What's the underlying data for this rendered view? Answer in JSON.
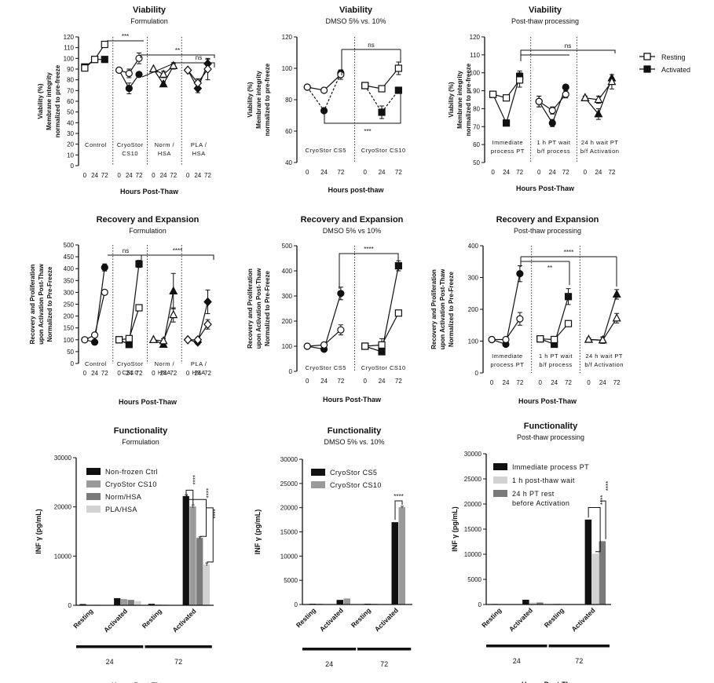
{
  "legend_shared": {
    "resting": "Resting",
    "activated": "Activated"
  },
  "chart_data": [
    {
      "id": "via-form",
      "type": "line",
      "title": "Viability",
      "subtitle": "Formulation",
      "xlabel": "Hours Post-Thaw",
      "ylabel": [
        "Viability (%)",
        "Membrane integrity",
        "normalized to pre-freeze"
      ],
      "ylim": [
        0,
        120
      ],
      "yticks": [
        0,
        10,
        20,
        30,
        40,
        50,
        60,
        70,
        80,
        90,
        100,
        110,
        120
      ],
      "x_ticks": [
        "0",
        "24",
        "72"
      ],
      "groups": [
        {
          "label": [
            "Control"
          ],
          "marker": "square",
          "resting": [
            91,
            99,
            113
          ],
          "activated": [
            92,
            99,
            99
          ],
          "err_r": [
            0,
            0,
            0
          ],
          "err_a": [
            0,
            0,
            0
          ]
        },
        {
          "label": [
            "CryoStor",
            "CS10"
          ],
          "marker": "circle",
          "resting": [
            89,
            86,
            100
          ],
          "activated": [
            89,
            72,
            85
          ],
          "err_r": [
            0,
            4,
            5
          ],
          "err_a": [
            0,
            5,
            0
          ]
        },
        {
          "label": [
            "Norm /",
            "HSA"
          ],
          "marker": "triangle",
          "resting": [
            90,
            85,
            93
          ],
          "activated": [
            90,
            76,
            93
          ],
          "err_r": [
            0,
            3,
            2
          ],
          "err_a": [
            0,
            2,
            3
          ]
        },
        {
          "label": [
            "PLA /",
            "HSA"
          ],
          "marker": "diamond",
          "resting": [
            89,
            77,
            90
          ],
          "activated": [
            89,
            72,
            95
          ],
          "err_r": [
            0,
            4,
            10
          ],
          "err_a": [
            0,
            4,
            4
          ]
        }
      ],
      "annotations": [
        "***",
        "**",
        "ns"
      ]
    },
    {
      "id": "via-dmso",
      "type": "line",
      "title": "Viability",
      "subtitle": "DMSO 5% vs. 10%",
      "xlabel": "Hours post-thaw",
      "ylabel": [
        "Viability (%)",
        "Membrane integrity",
        "normalized to pre-freeze"
      ],
      "ylim": [
        40,
        120
      ],
      "yticks": [
        40,
        60,
        80,
        100,
        120
      ],
      "x_ticks": [
        "0",
        "24",
        "72"
      ],
      "groups": [
        {
          "label": [
            "CryoStor CS5"
          ],
          "marker": "circle",
          "resting": [
            88,
            86,
            96
          ],
          "activated": [
            88,
            73,
            97
          ],
          "err_r": [
            0,
            0,
            3
          ],
          "err_a": [
            0,
            0,
            2
          ]
        },
        {
          "label": [
            "CryoStor CS10"
          ],
          "marker": "square",
          "resting": [
            89,
            87,
            100
          ],
          "activated": [
            89,
            72,
            86
          ],
          "err_r": [
            0,
            2,
            4
          ],
          "err_a": [
            0,
            4,
            0
          ]
        }
      ],
      "annotations": [
        "ns",
        "***"
      ]
    },
    {
      "id": "via-pt",
      "type": "line",
      "title": "Viability",
      "subtitle": "Post-thaw processing",
      "xlabel": "Hours Post-Thaw",
      "ylabel": [
        "Viability (%)",
        "Membrane integrity",
        "normalized to pre-freeze"
      ],
      "ylim": [
        50,
        120
      ],
      "yticks": [
        50,
        60,
        70,
        80,
        90,
        100,
        110,
        120
      ],
      "x_ticks": [
        "0",
        "24",
        "72"
      ],
      "groups": [
        {
          "label": [
            "Immediate",
            "process PT"
          ],
          "marker": "square",
          "resting": [
            88,
            86,
            96
          ],
          "activated": [
            88,
            72,
            98
          ],
          "err_r": [
            1,
            0,
            4
          ],
          "err_a": [
            1,
            0,
            3
          ]
        },
        {
          "label": [
            "1 h PT wait",
            "b/f process"
          ],
          "marker": "circle",
          "resting": [
            84,
            79,
            88
          ],
          "activated": [
            84,
            72,
            92
          ],
          "err_r": [
            3,
            2,
            2
          ],
          "err_a": [
            3,
            2,
            0
          ]
        },
        {
          "label": [
            "24 h wait PT",
            "b/f Activation"
          ],
          "marker": "triangle",
          "resting": [
            86,
            85,
            95
          ],
          "activated": [
            86,
            77,
            97
          ],
          "err_r": [
            1,
            2,
            4
          ],
          "err_a": [
            1,
            3,
            2
          ]
        }
      ],
      "annotations": [
        "ns"
      ]
    },
    {
      "id": "rec-form",
      "type": "line",
      "title": "Recovery and Expansion",
      "subtitle": "Formulation",
      "xlabel": "Hours Post-Thaw",
      "ylabel": [
        "Recovery and Proliferation",
        "upon Activation Post-Thaw",
        "Normalized to Pre-Freeze"
      ],
      "ylim": [
        0,
        500
      ],
      "yticks": [
        0,
        50,
        100,
        150,
        200,
        250,
        300,
        350,
        400,
        450,
        500
      ],
      "x_ticks": [
        "0",
        "24",
        "72"
      ],
      "groups": [
        {
          "label": [
            "Control"
          ],
          "marker": "circle",
          "resting": [
            100,
            120,
            300
          ],
          "activated": [
            100,
            90,
            405
          ],
          "err_r": [
            0,
            5,
            0
          ],
          "err_a": [
            0,
            0,
            15
          ]
        },
        {
          "label": [
            "CryoStor",
            "CS10"
          ],
          "marker": "square",
          "resting": [
            100,
            105,
            235
          ],
          "activated": [
            100,
            80,
            420
          ],
          "err_r": [
            0,
            0,
            0
          ],
          "err_a": [
            0,
            0,
            15
          ]
        },
        {
          "label": [
            "Norm /",
            "HSA"
          ],
          "marker": "triangle",
          "resting": [
            100,
            95,
            205
          ],
          "activated": [
            100,
            80,
            305
          ],
          "err_r": [
            0,
            10,
            30
          ],
          "err_a": [
            0,
            10,
            75
          ]
        },
        {
          "label": [
            "PLA /",
            "HSA"
          ],
          "marker": "diamond",
          "resting": [
            100,
            100,
            165
          ],
          "activated": [
            100,
            90,
            260
          ],
          "err_r": [
            0,
            10,
            20
          ],
          "err_a": [
            0,
            10,
            50
          ]
        }
      ],
      "annotations": [
        "ns",
        "****"
      ]
    },
    {
      "id": "rec-dmso",
      "type": "line",
      "title": "Recovery and Expansion",
      "subtitle": "DMSO 5% vs 10%",
      "xlabel": "Hours Post-Thaw",
      "ylabel": [
        "Recovery and Proliferation",
        "upon Activation Post-Thaw",
        "Normalized to Pre-Freeze"
      ],
      "ylim": [
        0,
        500
      ],
      "yticks": [
        0,
        100,
        200,
        300,
        400,
        500
      ],
      "x_ticks": [
        "0",
        "24",
        "72"
      ],
      "groups": [
        {
          "label": [
            "CryoStor CS5"
          ],
          "marker": "circle",
          "resting": [
            100,
            105,
            165
          ],
          "activated": [
            100,
            88,
            310
          ],
          "err_r": [
            0,
            0,
            20
          ],
          "err_a": [
            0,
            5,
            25
          ]
        },
        {
          "label": [
            "CryoStor CS10"
          ],
          "marker": "square",
          "resting": [
            100,
            105,
            232
          ],
          "activated": [
            100,
            78,
            420
          ],
          "err_r": [
            0,
            25,
            0
          ],
          "err_a": [
            0,
            0,
            20
          ]
        }
      ],
      "annotations": [
        "****"
      ]
    },
    {
      "id": "rec-pt",
      "type": "line",
      "title": "Recovery and Expansion",
      "subtitle": "Post-thaw processing",
      "xlabel": "Hours Post-Thaw",
      "ylabel": [
        "Recovery and Proliferation",
        "upon Activation Post-Thaw",
        "Normalized to Pre-Freeze"
      ],
      "ylim": [
        0,
        400
      ],
      "yticks": [
        0,
        100,
        200,
        300,
        400
      ],
      "x_ticks": [
        "0",
        "24",
        "72"
      ],
      "groups": [
        {
          "label": [
            "Immediate",
            "process PT"
          ],
          "marker": "circle",
          "resting": [
            105,
            105,
            170
          ],
          "activated": [
            105,
            90,
            312
          ],
          "err_r": [
            0,
            5,
            20
          ],
          "err_a": [
            0,
            5,
            25
          ]
        },
        {
          "label": [
            "1 h PT wait",
            "b/f process"
          ],
          "marker": "square",
          "resting": [
            107,
            105,
            155
          ],
          "activated": [
            107,
            90,
            240
          ],
          "err_r": [
            0,
            5,
            0
          ],
          "err_a": [
            0,
            0,
            25
          ]
        },
        {
          "label": [
            "24 h wait PT",
            "b/f Activation"
          ],
          "marker": "triangle",
          "resting": [
            105,
            103,
            172
          ],
          "activated": [
            105,
            103,
            247
          ],
          "err_r": [
            5,
            10,
            15
          ],
          "err_a": [
            5,
            10,
            15
          ]
        }
      ],
      "annotations": [
        "**",
        "****"
      ]
    },
    {
      "id": "fun-form",
      "type": "bar",
      "title": "Functionality",
      "subtitle": "Formulation",
      "xlabel": "Hours Post-Thaw",
      "ylabel": "INF γ (pg/mL)",
      "ylim": [
        0,
        30000
      ],
      "yticks": [
        0,
        10000,
        20000,
        30000
      ],
      "categories": [
        "Resting",
        "Activated",
        "Resting",
        "Activated"
      ],
      "timepoints": [
        "24",
        "72"
      ],
      "series": [
        {
          "name": "Non-frozen Ctrl",
          "color": "#111111",
          "values": [
            250,
            1450,
            300,
            22200
          ],
          "err": [
            0,
            0,
            0,
            300
          ]
        },
        {
          "name": "CryoStor CS10",
          "color": "#9a9a9a",
          "values": [
            100,
            1250,
            150,
            20100
          ],
          "err": [
            0,
            0,
            0,
            300
          ]
        },
        {
          "name": "Norm/HSA",
          "color": "#7a7a7a",
          "values": [
            100,
            1100,
            100,
            13700
          ],
          "err": [
            0,
            0,
            0,
            200
          ]
        },
        {
          "name": "PLA/HSA",
          "color": "#d2d2d2",
          "values": [
            80,
            850,
            80,
            8300
          ],
          "err": [
            0,
            0,
            0,
            300
          ]
        }
      ],
      "annotations": [
        "****",
        "****",
        "****"
      ]
    },
    {
      "id": "fun-dmso",
      "type": "bar",
      "title": "Functionality",
      "subtitle": "DMSO 5% vs. 10%",
      "xlabel": "Hours Post-Thaw",
      "ylabel": "INF γ (pg/mL)",
      "ylim": [
        0,
        30000
      ],
      "yticks": [
        0,
        5000,
        10000,
        15000,
        20000,
        25000,
        30000
      ],
      "categories": [
        "Resting",
        "Activated",
        "Resting",
        "Activated"
      ],
      "timepoints": [
        "24",
        "72"
      ],
      "series": [
        {
          "name": "CryoStor CS5",
          "color": "#111111",
          "values": [
            150,
            950,
            150,
            17000
          ],
          "err": [
            0,
            0,
            0,
            0
          ]
        },
        {
          "name": "CryoStor CS10",
          "color": "#9a9a9a",
          "values": [
            150,
            1250,
            150,
            20100
          ],
          "err": [
            0,
            0,
            0,
            200
          ]
        }
      ],
      "annotations": [
        "****"
      ]
    },
    {
      "id": "fun-pt",
      "type": "bar",
      "title": "Functionality",
      "subtitle": "Post-thaw processing",
      "xlabel": "Hours Post-Thaw",
      "ylabel": "INF γ (pg/mL)",
      "ylim": [
        0,
        30000
      ],
      "yticks": [
        0,
        5000,
        10000,
        15000,
        20000,
        25000,
        30000
      ],
      "categories": [
        "Resting",
        "Activated",
        "Resting",
        "Activated"
      ],
      "timepoints": [
        "24",
        "72"
      ],
      "series": [
        {
          "name": "Immediate process PT",
          "color": "#111111",
          "values": [
            100,
            950,
            100,
            16900
          ],
          "err": [
            0,
            0,
            0,
            0
          ]
        },
        {
          "name": "1 h post-thaw wait",
          "color": "#d2d2d2",
          "values": [
            80,
            400,
            80,
            10100
          ],
          "err": [
            0,
            0,
            0,
            0
          ]
        },
        {
          "name": "24 h PT rest before Activation",
          "color": "#7a7a7a",
          "values": [
            80,
            400,
            80,
            12600
          ],
          "err": [
            0,
            0,
            0,
            0
          ]
        }
      ],
      "annotations": [
        "****",
        "****"
      ]
    }
  ]
}
